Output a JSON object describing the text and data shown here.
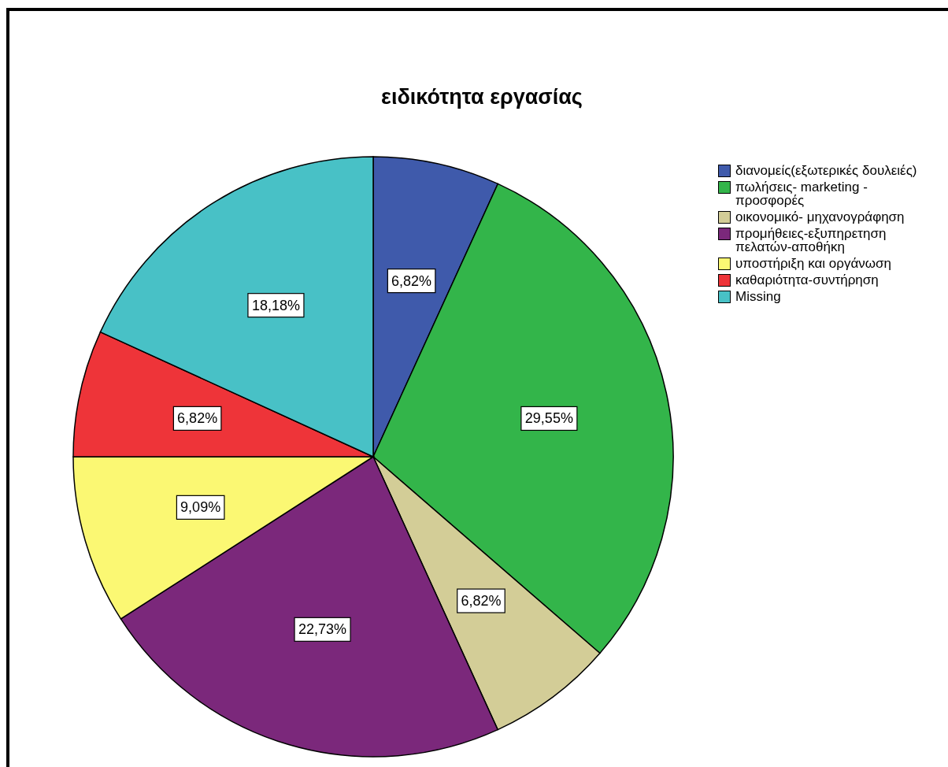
{
  "chart_data": {
    "type": "pie",
    "title": "ειδικότητα εργασίας",
    "categories": [
      "διανομείς(εξωτερικές δουλειές)",
      "πωλήσεις- marketing - προσφορές",
      "οικονομικό- μηχανογράφηση",
      "προμήθειες-εξυπηρετηση πελατών-αποθήκη",
      "υποστήριξη και οργάνωση",
      "καθαριότητα-συντήρηση",
      "Missing"
    ],
    "values": [
      6.82,
      29.55,
      6.82,
      22.73,
      9.09,
      6.82,
      18.18
    ],
    "value_labels": [
      "6,82%",
      "29,55%",
      "6,82%",
      "22,73%",
      "9,09%",
      "6,82%",
      "18,18%"
    ],
    "colors": [
      "#3f5aab",
      "#33b54a",
      "#d3cd97",
      "#7b287b",
      "#fbf873",
      "#ee3439",
      "#48c1c6"
    ],
    "legend": "right"
  }
}
